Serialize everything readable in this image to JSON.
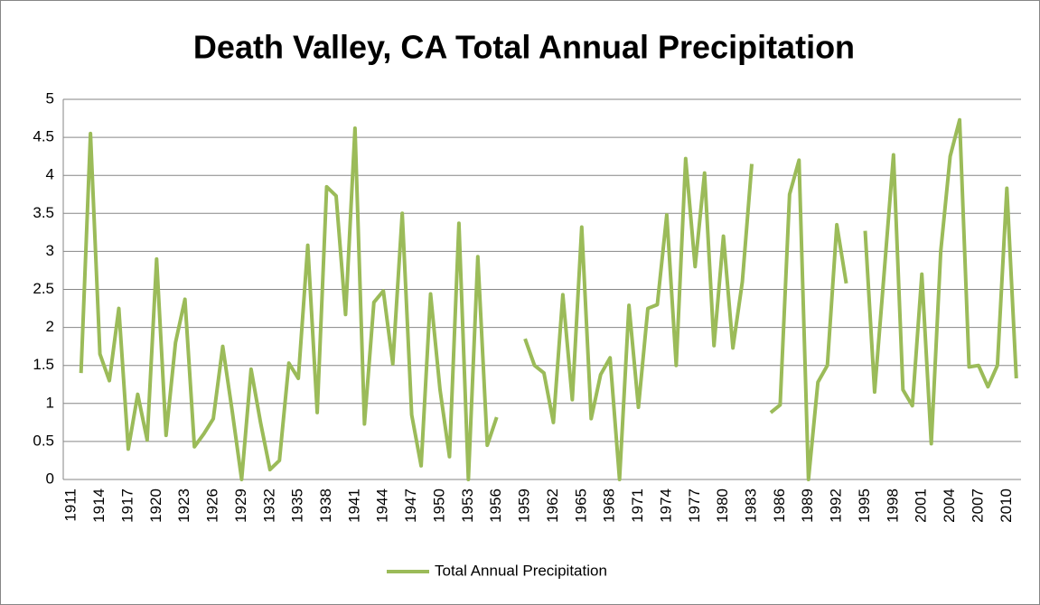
{
  "chart_data": {
    "type": "line",
    "title": "Death Valley, CA Total Annual Precipitation",
    "categories": [
      "1911",
      null,
      null,
      "1914",
      null,
      null,
      "1917",
      null,
      null,
      "1920",
      null,
      null,
      "1923",
      null,
      null,
      "1926",
      null,
      null,
      "1929",
      null,
      null,
      "1932",
      null,
      null,
      "1935",
      null,
      null,
      "1938",
      null,
      null,
      "1941",
      null,
      null,
      "1944",
      null,
      null,
      "1947",
      null,
      null,
      "1950",
      null,
      null,
      "1953",
      null,
      null,
      "1956",
      null,
      null,
      "1959",
      null,
      null,
      "1962",
      null,
      null,
      "1965",
      null,
      null,
      "1968",
      null,
      null,
      "1971",
      null,
      null,
      "1974",
      null,
      null,
      "1977",
      null,
      null,
      "1980",
      null,
      null,
      "1983",
      null,
      null,
      "1986",
      null,
      null,
      "1989",
      null,
      null,
      "1992",
      null,
      null,
      "1995",
      null,
      null,
      "1998",
      null,
      null,
      "2001",
      null,
      null,
      "2004",
      null,
      null,
      "2007",
      null,
      null,
      "2010",
      null
    ],
    "series": [
      {
        "name": "Total Annual Precipitation",
        "color": "#9bbb59",
        "values": [
          null,
          1.4,
          4.55,
          1.65,
          1.3,
          2.25,
          0.4,
          1.12,
          0.52,
          2.9,
          0.58,
          1.8,
          2.37,
          0.43,
          0.6,
          0.8,
          1.75,
          0.9,
          0,
          1.45,
          0.75,
          0.13,
          0.25,
          1.53,
          1.33,
          3.08,
          0.88,
          3.85,
          3.73,
          2.17,
          4.62,
          0.73,
          2.33,
          2.48,
          1.52,
          3.5,
          0.85,
          0.18,
          2.44,
          1.18,
          0.3,
          3.37,
          0,
          2.93,
          0.45,
          0.82,
          null,
          null,
          1.85,
          1.5,
          1.4,
          0.75,
          2.43,
          1.05,
          3.32,
          0.8,
          1.38,
          1.6,
          0,
          2.29,
          0.95,
          2.25,
          2.3,
          3.48,
          1.5,
          4.22,
          2.8,
          4.03,
          1.76,
          3.2,
          1.73,
          2.6,
          4.15,
          null,
          0.88,
          0.98,
          3.75,
          4.2,
          0,
          1.28,
          1.5,
          3.35,
          2.58,
          null,
          3.27,
          1.15,
          2.7,
          4.27,
          1.18,
          0.97,
          2.7,
          0.47,
          3,
          4.25,
          4.73,
          1.48,
          1.5,
          1.22,
          1.5,
          3.83,
          1.33
        ]
      }
    ],
    "ylim": [
      0,
      5
    ],
    "yticks": [
      0,
      0.5,
      1,
      1.5,
      2,
      2.5,
      3,
      3.5,
      4,
      4.5,
      5
    ],
    "grid": true,
    "legend": "bottom"
  }
}
